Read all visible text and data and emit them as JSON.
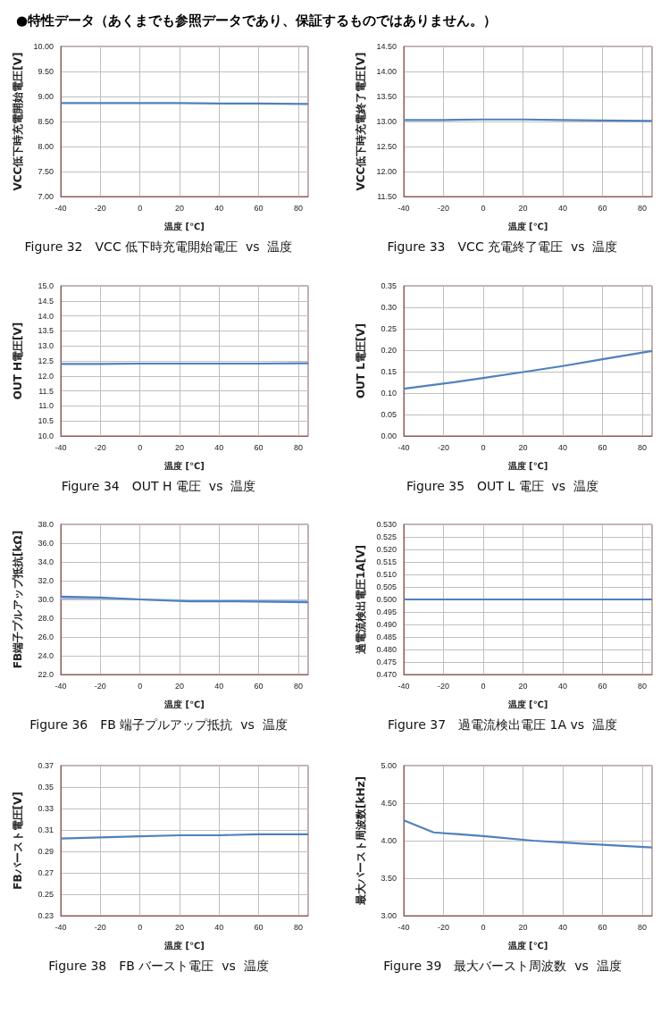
{
  "chart_data": [
    {
      "type": "line",
      "title": "Figure 32　VCC 低下時充電開始電圧  vs  温度",
      "xlabel": "温度 [℃]",
      "ylabel": "VCC低下時充電開始電圧[V]",
      "annotations": [
        "●特性データ（あくまでも参照データであり、保証するものではありません。）"
      ],
      "marker": "none",
      "grid": true,
      "x": [
        -40,
        -20,
        0,
        20,
        40,
        60,
        85
      ],
      "series": [
        {
          "color": "#4f81bd",
          "values": [
            8.87,
            8.87,
            8.87,
            8.87,
            8.86,
            8.86,
            8.85
          ]
        }
      ],
      "xlim": [
        -40,
        85
      ],
      "xticks": [
        -40,
        -20,
        0,
        20,
        40,
        60,
        80
      ],
      "ylim": [
        7,
        10
      ],
      "yticks": [
        {
          "value": 7,
          "label": "7.00"
        },
        {
          "value": 7.5,
          "label": "7.50"
        },
        {
          "value": 8,
          "label": "8.00"
        },
        {
          "value": 8.5,
          "label": "8.50"
        },
        {
          "value": 9,
          "label": "9.00"
        },
        {
          "value": 9.5,
          "label": "9.50"
        },
        {
          "value": 10,
          "label": "10.00"
        }
      ]
    },
    {
      "type": "line",
      "title": "Figure 33　VCC 充電終了電圧  vs  温度",
      "xlabel": "温度 [℃]",
      "ylabel": "VCC低下時充電終了電圧[V]",
      "marker": "none",
      "grid": true,
      "x": [
        -40,
        -20,
        0,
        20,
        40,
        60,
        85
      ],
      "series": [
        {
          "color": "#4f81bd",
          "values": [
            13.03,
            13.03,
            13.04,
            13.04,
            13.03,
            13.02,
            13.01
          ]
        }
      ],
      "xlim": [
        -40,
        85
      ],
      "xticks": [
        -40,
        -20,
        0,
        20,
        40,
        60,
        80
      ],
      "ylim": [
        11.5,
        14.5
      ],
      "yticks": [
        {
          "value": 11.5,
          "label": "11.50"
        },
        {
          "value": 12,
          "label": "12.00"
        },
        {
          "value": 12.5,
          "label": "12.50"
        },
        {
          "value": 13,
          "label": "13.00"
        },
        {
          "value": 13.5,
          "label": "13.50"
        },
        {
          "value": 14,
          "label": "14.00"
        },
        {
          "value": 14.5,
          "label": "14.50"
        }
      ]
    },
    {
      "type": "line",
      "title": "Figure 34　OUT H 電圧  vs  温度",
      "xlabel": "温度 [℃]",
      "ylabel": "OUT H電圧[V]",
      "marker": "none",
      "grid": true,
      "x": [
        -40,
        -20,
        0,
        20,
        40,
        60,
        85
      ],
      "series": [
        {
          "color": "#4f81bd",
          "values": [
            12.4,
            12.4,
            12.41,
            12.41,
            12.41,
            12.41,
            12.42
          ]
        }
      ],
      "xlim": [
        -40,
        85
      ],
      "xticks": [
        -40,
        -20,
        0,
        20,
        40,
        60,
        80
      ],
      "ylim": [
        10,
        15
      ],
      "yticks": [
        {
          "value": 10,
          "label": "10.0"
        },
        {
          "value": 10.5,
          "label": "10.5"
        },
        {
          "value": 11,
          "label": "11.0"
        },
        {
          "value": 11.5,
          "label": "11.5"
        },
        {
          "value": 12,
          "label": "12.0"
        },
        {
          "value": 12.5,
          "label": "12.5"
        },
        {
          "value": 13,
          "label": "13.0"
        },
        {
          "value": 13.5,
          "label": "13.5"
        },
        {
          "value": 14,
          "label": "14.0"
        },
        {
          "value": 14.5,
          "label": "14.5"
        },
        {
          "value": 15,
          "label": "15.0"
        }
      ]
    },
    {
      "type": "line",
      "title": "Figure 35　OUT L 電圧  vs  温度",
      "xlabel": "温度 [℃]",
      "ylabel": "OUT L電圧[V]",
      "marker": "none",
      "grid": true,
      "x": [
        -40,
        -20,
        0,
        20,
        40,
        60,
        85
      ],
      "series": [
        {
          "color": "#4f81bd",
          "values": [
            0.11,
            0.122,
            0.135,
            0.149,
            0.163,
            0.179,
            0.198
          ]
        }
      ],
      "xlim": [
        -40,
        85
      ],
      "xticks": [
        -40,
        -20,
        0,
        20,
        40,
        60,
        80
      ],
      "ylim": [
        0,
        0.35
      ],
      "yticks": [
        {
          "value": 0,
          "label": "0.00"
        },
        {
          "value": 0.05,
          "label": "0.05"
        },
        {
          "value": 0.1,
          "label": "0.10"
        },
        {
          "value": 0.15,
          "label": "0.15"
        },
        {
          "value": 0.2,
          "label": "0.20"
        },
        {
          "value": 0.25,
          "label": "0.25"
        },
        {
          "value": 0.3,
          "label": "0.30"
        },
        {
          "value": 0.35,
          "label": "0.35"
        }
      ]
    },
    {
      "type": "line",
      "title": "Figure 36　FB 端子プルアップ抵抗  vs  温度",
      "xlabel": "温度 [℃]",
      "ylabel": "FB端子プルアップ抵抗[kΩ]",
      "marker": "none",
      "grid": true,
      "x": [
        -40,
        -20,
        0,
        25,
        50,
        85
      ],
      "series": [
        {
          "color": "#a9bfdc",
          "values": [
            30.1,
            30.1,
            30.0,
            29.9,
            29.9,
            29.9
          ]
        },
        {
          "color": "#4f81bd",
          "values": [
            30.3,
            30.2,
            30.0,
            29.8,
            29.8,
            29.7
          ]
        }
      ],
      "xlim": [
        -40,
        85
      ],
      "xticks": [
        -40,
        -20,
        0,
        20,
        40,
        60,
        80
      ],
      "ylim": [
        22,
        38
      ],
      "yticks": [
        {
          "value": 22,
          "label": "22.0"
        },
        {
          "value": 24,
          "label": "24.0"
        },
        {
          "value": 26,
          "label": "26.0"
        },
        {
          "value": 28,
          "label": "28.0"
        },
        {
          "value": 30,
          "label": "30.0"
        },
        {
          "value": 32,
          "label": "32.0"
        },
        {
          "value": 34,
          "label": "34.0"
        },
        {
          "value": 36,
          "label": "36.0"
        },
        {
          "value": 38,
          "label": "38.0"
        }
      ]
    },
    {
      "type": "line",
      "title": "Figure 37　過電流検出電圧 1A vs  温度",
      "xlabel": "温度 [℃]",
      "ylabel": "過電流検出電圧1A[V]",
      "marker": "none",
      "grid": true,
      "x": [
        -40,
        -20,
        0,
        20,
        40,
        60,
        85
      ],
      "series": [
        {
          "color": "#4f81bd",
          "values": [
            0.5,
            0.5,
            0.5,
            0.5,
            0.5,
            0.5,
            0.5
          ]
        }
      ],
      "xlim": [
        -40,
        85
      ],
      "xticks": [
        -40,
        -20,
        0,
        20,
        40,
        60,
        80
      ],
      "ylim": [
        0.47,
        0.53
      ],
      "yticks": [
        {
          "value": 0.47,
          "label": "0.470"
        },
        {
          "value": 0.475,
          "label": "0.475"
        },
        {
          "value": 0.48,
          "label": "0.480"
        },
        {
          "value": 0.485,
          "label": "0.485"
        },
        {
          "value": 0.49,
          "label": "0.490"
        },
        {
          "value": 0.495,
          "label": "0.495"
        },
        {
          "value": 0.5,
          "label": "0.500"
        },
        {
          "value": 0.505,
          "label": "0.505"
        },
        {
          "value": 0.51,
          "label": "0.510"
        },
        {
          "value": 0.515,
          "label": "0.515"
        },
        {
          "value": 0.52,
          "label": "0.520"
        },
        {
          "value": 0.525,
          "label": "0.525"
        },
        {
          "value": 0.53,
          "label": "0.530"
        }
      ]
    },
    {
      "type": "line",
      "title": "Figure 38　FB バースト電圧  vs  温度",
      "xlabel": "温度 [℃]",
      "ylabel": "FBバースト電圧[V]",
      "marker": "none",
      "grid": true,
      "x": [
        -40,
        -20,
        0,
        20,
        40,
        60,
        85
      ],
      "series": [
        {
          "color": "#4f81bd",
          "values": [
            0.302,
            0.303,
            0.304,
            0.305,
            0.305,
            0.306,
            0.306
          ]
        }
      ],
      "xlim": [
        -40,
        85
      ],
      "xticks": [
        -40,
        -20,
        0,
        20,
        40,
        60,
        80
      ],
      "ylim": [
        0.23,
        0.37
      ],
      "yticks": [
        0.23,
        0.25,
        0.27,
        0.29,
        0.31,
        0.33,
        0.35,
        0.37
      ]
    },
    {
      "type": "line",
      "title": "Figure 39　最大バースト周波数  vs  温度",
      "xlabel": "温度 [℃]",
      "ylabel": "最大バースト周波数[kHz]",
      "marker": "none",
      "grid": true,
      "x": [
        -40,
        -25,
        0,
        25,
        50,
        85
      ],
      "series": [
        {
          "color": "#4f81bd",
          "values": [
            4.27,
            4.11,
            4.06,
            4.0,
            3.96,
            3.91
          ]
        }
      ],
      "xlim": [
        -40,
        85
      ],
      "xticks": [
        -40,
        -20,
        0,
        20,
        40,
        60,
        80
      ],
      "ylim": [
        3,
        5
      ],
      "yticks": [
        {
          "value": 3,
          "label": "3.00"
        },
        {
          "value": 3.5,
          "label": "3.50"
        },
        {
          "value": 4,
          "label": "4.00"
        },
        {
          "value": 4.5,
          "label": "4.50"
        },
        {
          "value": 5,
          "label": "5.00"
        }
      ]
    }
  ]
}
